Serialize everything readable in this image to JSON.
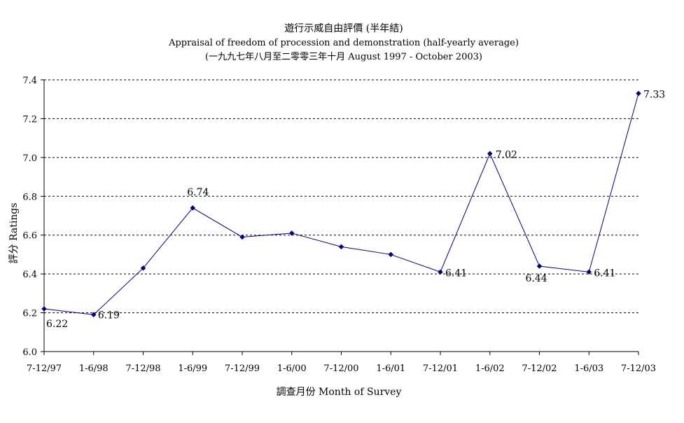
{
  "chart_data": {
    "type": "line",
    "title": "遊行示威自由評價 (半年結)",
    "subtitle": "Appraisal of freedom of procession and demonstration (half-yearly average)",
    "subtitle2": "(一九九七年八月至二零零三年十月 August 1997 - October 2003)",
    "xlabel": "調查月份 Month of Survey",
    "ylabel": "評分 Ratings",
    "ylim": [
      6.0,
      7.4
    ],
    "yticks": [
      "6.0",
      "6.2",
      "6.4",
      "6.6",
      "6.8",
      "7.0",
      "7.2",
      "7.4"
    ],
    "grid": true,
    "categories": [
      "7-12/97",
      "1-6/98",
      "7-12/98",
      "1-6/99",
      "7-12/99",
      "1-6/00",
      "7-12/00",
      "1-6/01",
      "7-12/01",
      "1-6/02",
      "7-12/02",
      "1-6/03",
      "7-12/03"
    ],
    "series": [
      {
        "values": [
          6.22,
          6.19,
          6.43,
          6.74,
          6.59,
          6.61,
          6.54,
          6.5,
          6.41,
          7.02,
          6.44,
          6.41,
          7.33
        ]
      }
    ],
    "data_labels": [
      "6.22",
      "6.19",
      "",
      "6.74",
      "",
      "",
      "",
      "",
      "6.41",
      "7.02",
      "6.44",
      "6.41",
      "7.33"
    ],
    "line_color": "#000080",
    "grid_color": "#000000"
  }
}
